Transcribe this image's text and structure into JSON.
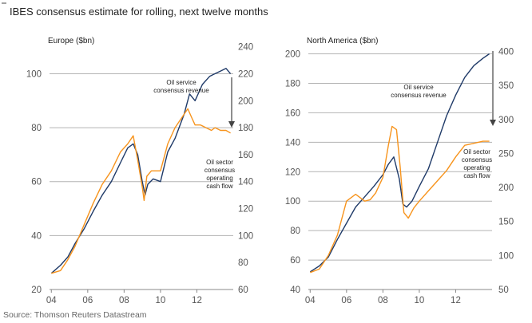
{
  "title": "IBES consensus estimate for rolling, next twelve months",
  "source": "Source: Thomson Reuters Datastream",
  "colors": {
    "service": "#1f3a68",
    "cashflow": "#f7941d",
    "grid": "#b3b3b3",
    "arrow": "#444444"
  },
  "chart_data": [
    {
      "type": "line",
      "title": "Europe ($bn)",
      "x_ticks": [
        "04",
        "06",
        "08",
        "10",
        "12"
      ],
      "xlim": [
        2003.9,
        2014.0
      ],
      "left_axis": {
        "ticks": [
          20,
          40,
          60,
          80,
          100
        ],
        "lim": [
          20,
          109
        ]
      },
      "right_axis": {
        "ticks": [
          60,
          80,
          100,
          120,
          140,
          160,
          180,
          200,
          220,
          240
        ],
        "lim": [
          60,
          238
        ]
      },
      "grid": true,
      "series": [
        {
          "name": "Oil service consensus revenue",
          "axis": "right",
          "color": "#1f3a68",
          "x": [
            2004.0,
            2004.5,
            2004.9,
            2005.3,
            2005.8,
            2006.3,
            2006.8,
            2007.3,
            2007.8,
            2008.2,
            2008.5,
            2008.75,
            2009.0,
            2009.15,
            2009.3,
            2009.6,
            2010.0,
            2010.4,
            2010.8,
            2011.3,
            2011.6,
            2011.9,
            2012.3,
            2012.7,
            2013.0,
            2013.3,
            2013.6,
            2013.85
          ],
          "y": [
            72,
            78,
            84,
            94,
            105,
            118,
            130,
            140,
            154,
            165,
            168,
            160,
            140,
            130,
            138,
            142,
            140,
            162,
            172,
            190,
            205,
            200,
            212,
            218,
            220,
            222,
            224,
            220
          ]
        },
        {
          "name": "Oil sector consensus operating cash flow",
          "axis": "left",
          "color": "#f7941d",
          "x": [
            2004.0,
            2004.5,
            2004.9,
            2005.3,
            2005.8,
            2006.3,
            2006.8,
            2007.3,
            2007.8,
            2008.2,
            2008.5,
            2008.75,
            2009.0,
            2009.1,
            2009.25,
            2009.5,
            2010.0,
            2010.4,
            2010.8,
            2011.2,
            2011.5,
            2011.7,
            2011.9,
            2012.2,
            2012.5,
            2012.8,
            2013.0,
            2013.3,
            2013.6,
            2013.85
          ],
          "y": [
            26,
            27,
            31,
            36,
            44,
            52,
            59,
            64,
            71,
            74,
            77,
            68,
            58,
            53,
            62,
            64,
            64,
            74,
            80,
            84,
            87,
            84,
            81,
            81,
            80,
            79,
            80,
            79,
            79,
            78
          ]
        }
      ],
      "annotations": [
        "Oil service consensus revenue",
        "Oil sector consensus operating cash flow"
      ]
    },
    {
      "type": "line",
      "title": "North America ($bn)",
      "x_ticks": [
        "04",
        "06",
        "08",
        "10",
        "12"
      ],
      "xlim": [
        2003.9,
        2014.0
      ],
      "left_axis": {
        "ticks": [
          40,
          60,
          80,
          100,
          120,
          140,
          160,
          180,
          200
        ],
        "lim": [
          40,
          203
        ]
      },
      "right_axis": {
        "ticks": [
          50,
          100,
          150,
          200,
          250,
          300,
          350,
          400
        ],
        "lim": [
          50,
          403
        ]
      },
      "grid": true,
      "series": [
        {
          "name": "Oil service consensus revenue",
          "axis": "left",
          "color": "#1f3a68",
          "x": [
            2004.0,
            2004.5,
            2005.0,
            2005.5,
            2006.0,
            2006.5,
            2007.0,
            2007.5,
            2008.0,
            2008.3,
            2008.6,
            2008.9,
            2009.1,
            2009.3,
            2009.6,
            2010.0,
            2010.5,
            2011.0,
            2011.5,
            2012.0,
            2012.5,
            2013.0,
            2013.5,
            2013.85
          ],
          "y": [
            52,
            56,
            62,
            74,
            85,
            96,
            103,
            110,
            118,
            125,
            130,
            115,
            98,
            96,
            100,
            110,
            122,
            140,
            158,
            172,
            184,
            192,
            197,
            200
          ]
        },
        {
          "name": "Oil sector consensus operating cash flow",
          "axis": "right",
          "color": "#f7941d",
          "x": [
            2004.0,
            2004.5,
            2005.0,
            2005.5,
            2006.0,
            2006.5,
            2007.0,
            2007.3,
            2007.6,
            2008.0,
            2008.3,
            2008.5,
            2008.75,
            2008.95,
            2009.15,
            2009.4,
            2009.7,
            2010.0,
            2010.5,
            2011.0,
            2011.5,
            2012.0,
            2012.5,
            2013.0,
            2013.5,
            2013.85
          ],
          "y": [
            75,
            80,
            100,
            130,
            180,
            190,
            180,
            182,
            192,
            215,
            262,
            290,
            285,
            230,
            163,
            155,
            170,
            180,
            195,
            210,
            225,
            245,
            262,
            265,
            268,
            268
          ]
        }
      ],
      "annotations": [
        "Oil service consensus revenue",
        "Oil sector consensus operating cash flow"
      ]
    }
  ]
}
